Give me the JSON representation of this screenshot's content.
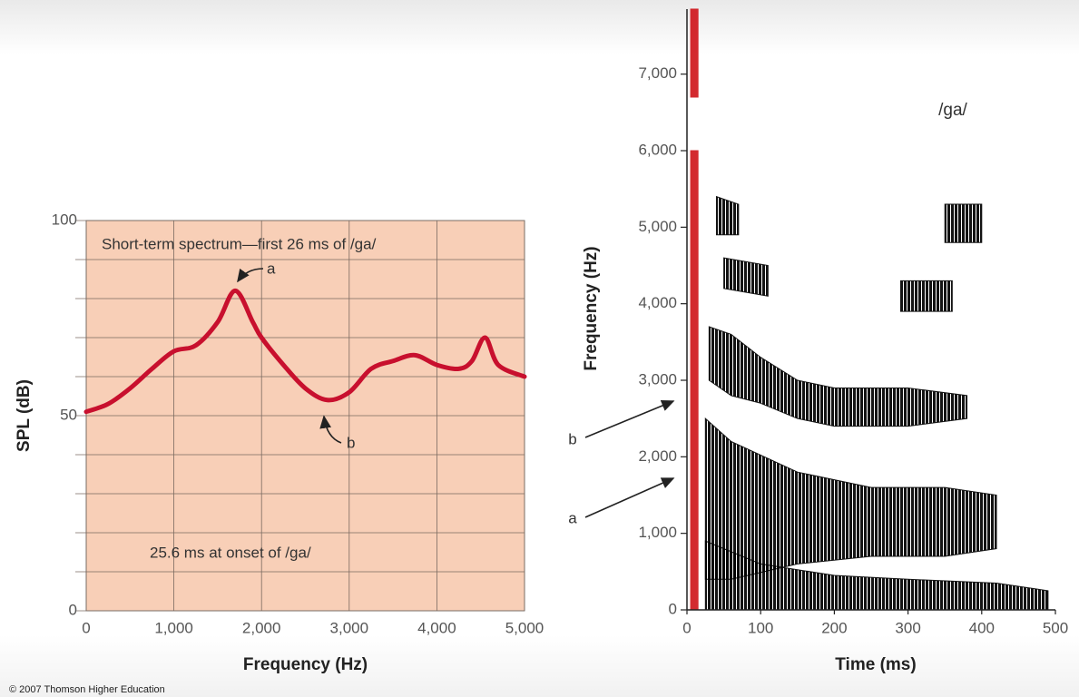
{
  "chart_data": [
    {
      "type": "line",
      "x_label": "Frequency (Hz)",
      "y_label": "SPL (dB)",
      "annotations": [
        "Short-term spectrum—first 26 ms of /ga/",
        "25.6 ms at onset of /ga/",
        "a",
        "b"
      ],
      "x": [
        0,
        250,
        500,
        750,
        1000,
        1250,
        1500,
        1700,
        1900,
        2000,
        2250,
        2500,
        2750,
        3000,
        3250,
        3500,
        3750,
        4000,
        4250,
        4400,
        4550,
        4700,
        5000
      ],
      "values": [
        51,
        53,
        57,
        62,
        66.5,
        68,
        74,
        82,
        74,
        70,
        63,
        57,
        54,
        56,
        62,
        64,
        65.5,
        63,
        62,
        64,
        70,
        63,
        60
      ],
      "color": "#c8102e",
      "xlim": [
        0,
        5000
      ],
      "xticks": [
        0,
        {
          "value": 1000,
          "label": "1,000"
        },
        {
          "value": 2000,
          "label": "2,000"
        },
        {
          "value": 3000,
          "label": "3,000"
        },
        {
          "value": 4000,
          "label": "4,000"
        },
        {
          "value": 5000,
          "label": "5,000"
        }
      ],
      "ylim": [
        0,
        100
      ],
      "yticks": [
        0,
        50,
        100
      ],
      "minor_yticks": [
        10,
        20,
        30,
        40,
        60,
        70,
        80,
        90
      ],
      "grid": true,
      "background": "#f8cfb7"
    },
    {
      "type": "spectrogram",
      "title": "/ga/",
      "x_label": "Time (ms)",
      "y_label": "Frequency (Hz)",
      "annotations": [
        "b",
        "a"
      ],
      "series": [
        {
          "color": "#d0181e",
          "x": [
            5,
            15
          ],
          "low": [
            0,
            0
          ],
          "high": [
            6000,
            6000
          ]
        },
        {
          "color": "#d0181e",
          "x": [
            5,
            15
          ],
          "low": [
            6700,
            6700
          ],
          "high": [
            7850,
            7850
          ]
        },
        {
          "color": "#000000",
          "x": [
            25,
            100,
            200,
            300,
            420,
            490
          ],
          "low": [
            0,
            0,
            0,
            0,
            0,
            0
          ],
          "high": [
            900,
            600,
            450,
            400,
            350,
            250
          ]
        },
        {
          "color": "#000000",
          "x": [
            25,
            60,
            150,
            250,
            350,
            420
          ],
          "low": [
            400,
            400,
            600,
            700,
            700,
            800
          ],
          "high": [
            2500,
            2200,
            1800,
            1600,
            1600,
            1500
          ]
        },
        {
          "color": "#000000",
          "x": [
            30,
            60,
            100,
            150,
            200,
            300,
            380
          ],
          "low": [
            3000,
            2800,
            2700,
            2500,
            2400,
            2400,
            2500
          ],
          "high": [
            3700,
            3600,
            3300,
            3000,
            2900,
            2900,
            2800
          ]
        },
        {
          "color": "#000000",
          "x": [
            50,
            110
          ],
          "low": [
            4200,
            4100
          ],
          "high": [
            4600,
            4500
          ]
        },
        {
          "color": "#000000",
          "x": [
            40,
            70
          ],
          "low": [
            4900,
            4900
          ],
          "high": [
            5400,
            5300
          ]
        },
        {
          "color": "#000000",
          "x": [
            290,
            360
          ],
          "low": [
            3900,
            3900
          ],
          "high": [
            4300,
            4300
          ]
        },
        {
          "color": "#000000",
          "x": [
            350,
            400
          ],
          "low": [
            4800,
            4800
          ],
          "high": [
            5300,
            5300
          ]
        }
      ],
      "xlim": [
        0,
        500
      ],
      "xticks": [
        0,
        100,
        200,
        300,
        400,
        500
      ],
      "ylim": [
        0,
        7850
      ],
      "yticks": [
        0,
        {
          "value": 1000,
          "label": "1,000"
        },
        {
          "value": 2000,
          "label": "2,000"
        },
        {
          "value": 3000,
          "label": "3,000"
        },
        {
          "value": 4000,
          "label": "4,000"
        },
        {
          "value": 5000,
          "label": "5,000"
        },
        {
          "value": 6000,
          "label": "6,000"
        },
        {
          "value": 7000,
          "label": "7,000"
        }
      ],
      "grid": false
    }
  ],
  "credit": "© 2007 Thomson Higher Education"
}
